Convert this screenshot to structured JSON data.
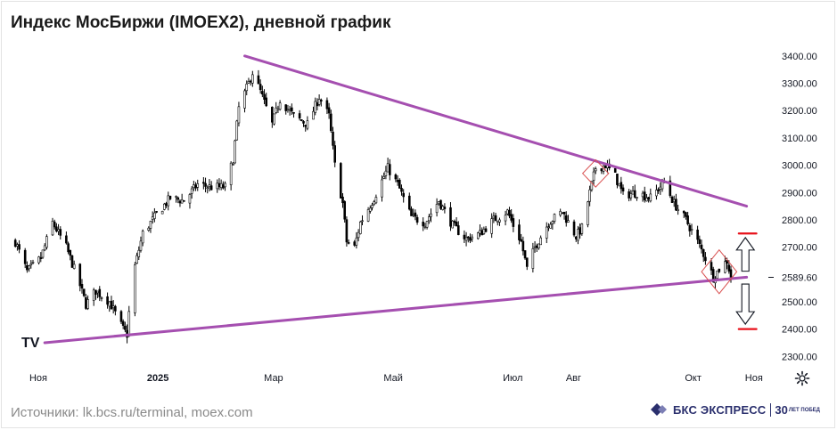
{
  "title": "Индекс МосБиржи (IMOEX2), дневной график",
  "source": "Источники: lk.bcs.ru/terminal, moex.com",
  "brand": {
    "name": "БКС ЭКСПРЕСС",
    "years": "30",
    "years_small": "ЛЕТ ПОБЕД"
  },
  "tv_logo": "TV",
  "icons": {
    "settings": "gear-icon",
    "brand": "bks-logo-icon",
    "platform": "tradingview-logo-icon"
  },
  "colors": {
    "candles": "#000000",
    "trendline": "#a54fb0",
    "target_line": "#e8101a",
    "highlight": "#d94f4f",
    "axis_text": "#131722",
    "brand": "#2a2f6d"
  },
  "chart_data": {
    "type": "candlestick",
    "price_axis": {
      "ticks": [
        "3400.00",
        "3300.00",
        "3200.00",
        "3100.00",
        "3000.00",
        "2900.00",
        "2800.00",
        "2700.00",
        "2589.60",
        "2500.00",
        "2400.00",
        "2300.00"
      ],
      "current_price": 2589.6,
      "range": [
        2275,
        3455
      ]
    },
    "time_axis": {
      "labels": [
        "Ноя",
        "2025",
        "Мар",
        "Май",
        "Июл",
        "Авг",
        "Окт",
        "Ноя"
      ],
      "bold_labels": [
        "2025"
      ],
      "range": [
        "2024-10-22",
        "2025-11-07"
      ]
    },
    "close_path": [
      [
        "2024-10-23",
        2720
      ],
      [
        "2024-10-29",
        2610
      ],
      [
        "2024-11-05",
        2660
      ],
      [
        "2024-11-11",
        2790
      ],
      [
        "2024-11-18",
        2700
      ],
      [
        "2024-11-25",
        2560
      ],
      [
        "2024-11-28",
        2490
      ],
      [
        "2024-12-03",
        2540
      ],
      [
        "2024-12-10",
        2500
      ],
      [
        "2024-12-17",
        2400
      ],
      [
        "2024-12-19",
        2380
      ],
      [
        "2024-12-20",
        2460
      ],
      [
        "2024-12-23",
        2630
      ],
      [
        "2024-12-27",
        2750
      ],
      [
        "2025-01-03",
        2820
      ],
      [
        "2025-01-10",
        2880
      ],
      [
        "2025-01-17",
        2870
      ],
      [
        "2025-01-24",
        2930
      ],
      [
        "2025-01-31",
        2920
      ],
      [
        "2025-02-07",
        2920
      ],
      [
        "2025-02-11",
        3020
      ],
      [
        "2025-02-14",
        3210
      ],
      [
        "2025-02-19",
        3300
      ],
      [
        "2025-02-21",
        3340
      ],
      [
        "2025-02-25",
        3270
      ],
      [
        "2025-03-03",
        3150
      ],
      [
        "2025-03-07",
        3240
      ],
      [
        "2025-03-14",
        3180
      ],
      [
        "2025-03-21",
        3150
      ],
      [
        "2025-03-27",
        3250
      ],
      [
        "2025-04-01",
        3180
      ],
      [
        "2025-04-04",
        3000
      ],
      [
        "2025-04-08",
        2860
      ],
      [
        "2025-04-10",
        2720
      ],
      [
        "2025-04-14",
        2700
      ],
      [
        "2025-04-17",
        2790
      ],
      [
        "2025-04-24",
        2880
      ],
      [
        "2025-05-01",
        2990
      ],
      [
        "2025-05-06",
        2930
      ],
      [
        "2025-05-13",
        2810
      ],
      [
        "2025-05-20",
        2790
      ],
      [
        "2025-05-27",
        2870
      ],
      [
        "2025-06-03",
        2780
      ],
      [
        "2025-06-10",
        2730
      ],
      [
        "2025-06-17",
        2750
      ],
      [
        "2025-06-24",
        2800
      ],
      [
        "2025-07-01",
        2830
      ],
      [
        "2025-07-04",
        2780
      ],
      [
        "2025-07-08",
        2720
      ],
      [
        "2025-07-11",
        2620
      ],
      [
        "2025-07-15",
        2700
      ],
      [
        "2025-07-22",
        2790
      ],
      [
        "2025-07-29",
        2830
      ],
      [
        "2025-08-05",
        2740
      ],
      [
        "2025-08-08",
        2770
      ],
      [
        "2025-08-12",
        2900
      ],
      [
        "2025-08-15",
        2990
      ],
      [
        "2025-08-20",
        3000
      ],
      [
        "2025-08-25",
        2960
      ],
      [
        "2025-08-29",
        2890
      ],
      [
        "2025-09-05",
        2900
      ],
      [
        "2025-09-12",
        2880
      ],
      [
        "2025-09-19",
        2940
      ],
      [
        "2025-09-24",
        2860
      ],
      [
        "2025-09-30",
        2800
      ],
      [
        "2025-10-06",
        2720
      ],
      [
        "2025-10-10",
        2660
      ],
      [
        "2025-10-14",
        2590
      ],
      [
        "2025-10-17",
        2620
      ],
      [
        "2025-10-21",
        2650
      ],
      [
        "2025-10-23",
        2589.6
      ]
    ],
    "lines": [
      {
        "kind": "trendline",
        "from": [
          "2025-02-17",
          3400
        ],
        "to": [
          "2025-10-31",
          2850
        ]
      },
      {
        "kind": "trendline",
        "from": [
          "2024-11-07",
          2350
        ],
        "to": [
          "2025-10-31",
          2590
        ]
      },
      {
        "kind": "target",
        "from": [
          "2025-10-27",
          2750
        ],
        "to": [
          "2025-11-05",
          2750
        ]
      },
      {
        "kind": "target",
        "from": [
          "2025-10-27",
          2400
        ],
        "to": [
          "2025-11-05",
          2400
        ]
      }
    ],
    "highlights": [
      {
        "kind": "diamond",
        "at": "2025-08-15",
        "high": 3020,
        "low": 2920
      },
      {
        "kind": "diamond",
        "at": "2025-10-17",
        "high": 2690,
        "low": 2530
      }
    ],
    "arrows": [
      {
        "direction": "up",
        "at": "2025-10-24",
        "from": 2612,
        "to": 2735
      },
      {
        "direction": "down",
        "at": "2025-10-24",
        "from": 2565,
        "to": 2418
      }
    ]
  }
}
